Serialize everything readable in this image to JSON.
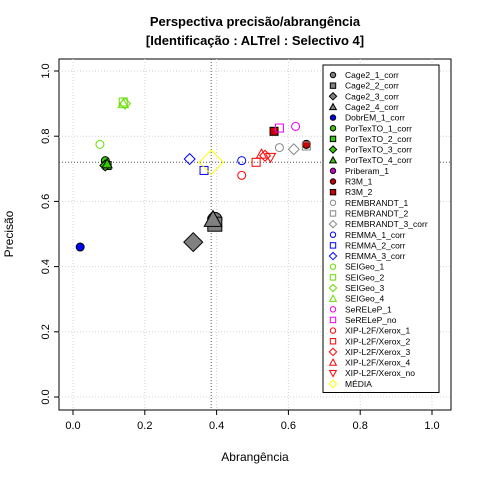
{
  "chart_data": {
    "type": "scatter",
    "title": "Perspectiva precisão/abrangência",
    "subtitle": "[Identificação : ALTrel : Selectivo 4]",
    "xlabel": "Abrangência",
    "ylabel": "Precisão",
    "xlim": [
      0,
      1
    ],
    "ylim": [
      0,
      1
    ],
    "x_ticks": [
      "0.0",
      "0.2",
      "0.4",
      "0.6",
      "0.8",
      "1.0"
    ],
    "y_ticks": [
      "0.0",
      "0.2",
      "0.4",
      "0.6",
      "0.8",
      "1.0"
    ],
    "grid": true,
    "legend_position": "top-right",
    "reference_lines": {
      "x": 0.385,
      "y": 0.72
    },
    "series": [
      {
        "name": "Cage2_1_corr",
        "marker": "circle",
        "filled": true,
        "color": "#808080",
        "x": 0.395,
        "y": 0.545
      },
      {
        "name": "Cage2_2_corr",
        "marker": "square",
        "filled": true,
        "color": "#808080",
        "x": 0.395,
        "y": 0.53
      },
      {
        "name": "Cage2_3_corr",
        "marker": "diamond",
        "filled": true,
        "color": "#808080",
        "x": 0.335,
        "y": 0.475
      },
      {
        "name": "Cage2_4_corr",
        "marker": "triangle",
        "filled": true,
        "color": "#808080",
        "x": 0.39,
        "y": 0.545
      },
      {
        "name": "DobrEM_1_corr",
        "marker": "circle",
        "filled": true,
        "color": "#0000ff",
        "x": 0.02,
        "y": 0.46
      },
      {
        "name": "PorTexTO_1_corr",
        "marker": "circle",
        "filled": true,
        "color": "#33cc00",
        "x": 0.09,
        "y": 0.725
      },
      {
        "name": "PorTexTO_2_corr",
        "marker": "square",
        "filled": true,
        "color": "#33cc00",
        "x": 0.095,
        "y": 0.71
      },
      {
        "name": "PorTexTO_3_corr",
        "marker": "diamond",
        "filled": true,
        "color": "#33cc00",
        "x": 0.09,
        "y": 0.71
      },
      {
        "name": "PorTexTO_4_corr",
        "marker": "triangle",
        "filled": true,
        "color": "#33cc00",
        "x": 0.095,
        "y": 0.715
      },
      {
        "name": "Priberam_1",
        "marker": "circle",
        "filled": true,
        "color": "#cc00cc",
        "x": 0.65,
        "y": 0.775
      },
      {
        "name": "R3M_1",
        "marker": "circle",
        "filled": true,
        "color": "#cc0000",
        "x": 0.65,
        "y": 0.775
      },
      {
        "name": "R3M_2",
        "marker": "square",
        "filled": true,
        "color": "#cc0000",
        "x": 0.56,
        "y": 0.815
      },
      {
        "name": "REMBRANDT_1",
        "marker": "circle",
        "filled": false,
        "color": "#888888",
        "x": 0.575,
        "y": 0.765
      },
      {
        "name": "REMBRANDT_2",
        "marker": "square",
        "filled": false,
        "color": "#888888",
        "x": 0.65,
        "y": 0.77
      },
      {
        "name": "REMBRANDT_3_corr",
        "marker": "diamond",
        "filled": false,
        "color": "#888888",
        "x": 0.615,
        "y": 0.76
      },
      {
        "name": "REMMA_1_corr",
        "marker": "circle",
        "filled": false,
        "color": "#0000ff",
        "x": 0.47,
        "y": 0.725
      },
      {
        "name": "REMMA_2_corr",
        "marker": "square",
        "filled": false,
        "color": "#0000ff",
        "x": 0.365,
        "y": 0.695
      },
      {
        "name": "REMMA_3_corr",
        "marker": "diamond",
        "filled": false,
        "color": "#0000ff",
        "x": 0.325,
        "y": 0.73
      },
      {
        "name": "SEIGeo_1",
        "marker": "circle",
        "filled": false,
        "color": "#66dd00",
        "x": 0.075,
        "y": 0.775
      },
      {
        "name": "SEIGeo_2",
        "marker": "square",
        "filled": false,
        "color": "#66dd00",
        "x": 0.14,
        "y": 0.905
      },
      {
        "name": "SEIGeo_3",
        "marker": "diamond",
        "filled": false,
        "color": "#66dd00",
        "x": 0.145,
        "y": 0.9
      },
      {
        "name": "SEIGeo_4",
        "marker": "triangle",
        "filled": false,
        "color": "#66dd00",
        "x": 0.14,
        "y": 0.9
      },
      {
        "name": "SeRELeP_1",
        "marker": "circle",
        "filled": false,
        "color": "#ee00ee",
        "x": 0.62,
        "y": 0.83
      },
      {
        "name": "SeRELeP_no",
        "marker": "square",
        "filled": false,
        "color": "#ee00ee",
        "x": 0.575,
        "y": 0.825
      },
      {
        "name": "XIP-L2F/Xerox_1",
        "marker": "circle",
        "filled": false,
        "color": "#ff0000",
        "x": 0.47,
        "y": 0.68
      },
      {
        "name": "XIP-L2F/Xerox_2",
        "marker": "square",
        "filled": false,
        "color": "#ff0000",
        "x": 0.51,
        "y": 0.72
      },
      {
        "name": "XIP-L2F/Xerox_3",
        "marker": "diamond",
        "filled": false,
        "color": "#ff0000",
        "x": 0.535,
        "y": 0.74
      },
      {
        "name": "XIP-L2F/Xerox_4",
        "marker": "triangle",
        "filled": false,
        "color": "#ff0000",
        "x": 0.525,
        "y": 0.745
      },
      {
        "name": "XIP-L2F/Xerox_no",
        "marker": "triangle-down",
        "filled": false,
        "color": "#ff0000",
        "x": 0.55,
        "y": 0.735
      },
      {
        "name": "MÉDIA",
        "marker": "diamond",
        "filled": false,
        "color": "#ffff00",
        "x": 0.385,
        "y": 0.72
      }
    ]
  }
}
